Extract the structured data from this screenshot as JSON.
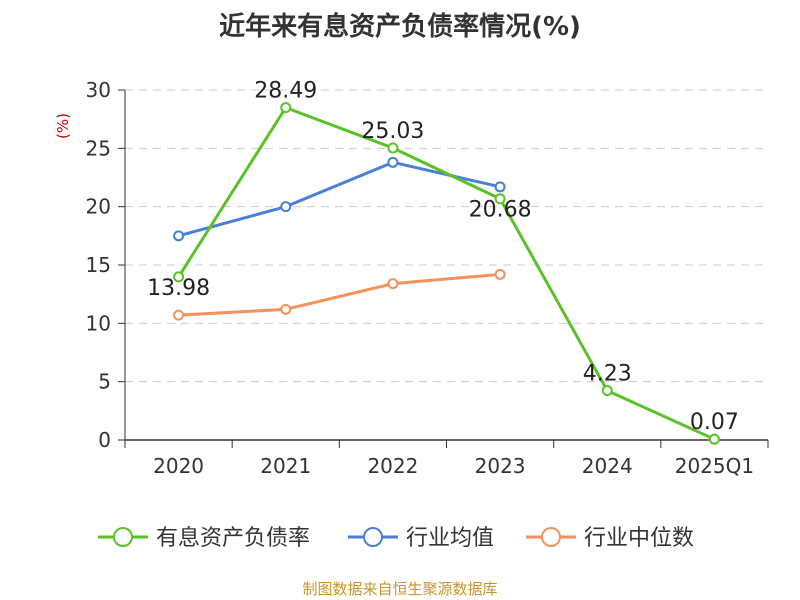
{
  "title": "近年来有息资产负债率情况(%)",
  "source": "制图数据来自恒生聚源数据库",
  "colors": {
    "axis": "#333333",
    "grid": "#cccccc",
    "ylabel": "#cc0000"
  },
  "chart_data": {
    "type": "line",
    "title": "近年来有息资产负债率情况(%)",
    "ylabel": "(%)",
    "xlabel": "",
    "categories": [
      "2020",
      "2021",
      "2022",
      "2023",
      "2024",
      "2025Q1"
    ],
    "ylim": [
      0,
      30
    ],
    "yticks": [
      0,
      5,
      10,
      15,
      20,
      25,
      30
    ],
    "grid": true,
    "legend_position": "bottom",
    "series": [
      {
        "name": "有息资产负债率",
        "color": "#5ac229",
        "values": [
          13.98,
          28.49,
          25.03,
          20.68,
          4.23,
          0.07
        ],
        "labels": [
          "13.98",
          "28.49",
          "25.03",
          "20.68",
          "4.23",
          "0.07"
        ]
      },
      {
        "name": "行业均值",
        "color": "#4a7fd8",
        "values": [
          17.5,
          20.0,
          23.8,
          21.7,
          null,
          null
        ]
      },
      {
        "name": "行业中位数",
        "color": "#f5915a",
        "values": [
          10.7,
          11.2,
          13.4,
          14.2,
          null,
          null
        ]
      }
    ]
  }
}
